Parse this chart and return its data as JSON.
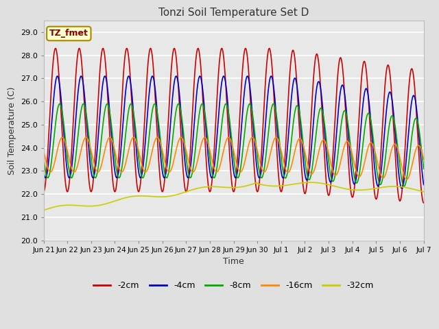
{
  "title": "Tonzi Soil Temperature Set D",
  "xlabel": "Time",
  "ylabel": "Soil Temperature (C)",
  "annotation_text": "TZ_fmet",
  "annotation_bg": "#ffffcc",
  "annotation_edge": "#aa8800",
  "annotation_text_color": "#880000",
  "series_labels": [
    "-2cm",
    "-4cm",
    "-8cm",
    "-16cm",
    "-32cm"
  ],
  "series_colors": [
    "#cc0000",
    "#0000cc",
    "#00aa00",
    "#ff8800",
    "#cccc00"
  ],
  "xtick_labels": [
    "Jun 21",
    "Jun 22",
    "Jun 23",
    "Jun 24",
    "Jun 25",
    "Jun 26",
    "Jun 27",
    "Jun 28",
    "Jun 29",
    "Jun 30",
    "Jul 1",
    "Jul 2",
    "Jul 3",
    "Jul 4",
    "Jul 5",
    "Jul 6",
    "Jul 7"
  ],
  "bg_color": "#e0e0e0",
  "plot_bg": "#e8e8e8",
  "grid_color": "#ffffff",
  "figwidth": 6.4,
  "figheight": 4.8,
  "dpi": 100
}
